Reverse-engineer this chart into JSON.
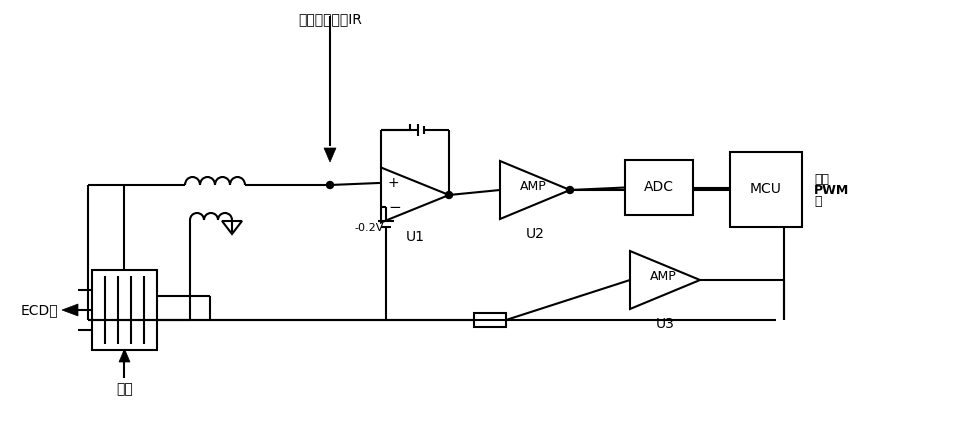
{
  "bg_color": "#ffffff",
  "line_color": "#000000",
  "lw": 1.5,
  "title_text": "设定基准电流IR",
  "label_ecd": "ECD池",
  "label_zaiq": "载气",
  "label_u1": "U1",
  "label_u2": "U2",
  "label_u3": "U3",
  "label_amp": "AMP",
  "label_adc": "ADC",
  "label_mcu": "MCU",
  "label_neg02": "-0.2V",
  "label_out1": "输出",
  "label_out2": "PWM",
  "label_out3": "波"
}
